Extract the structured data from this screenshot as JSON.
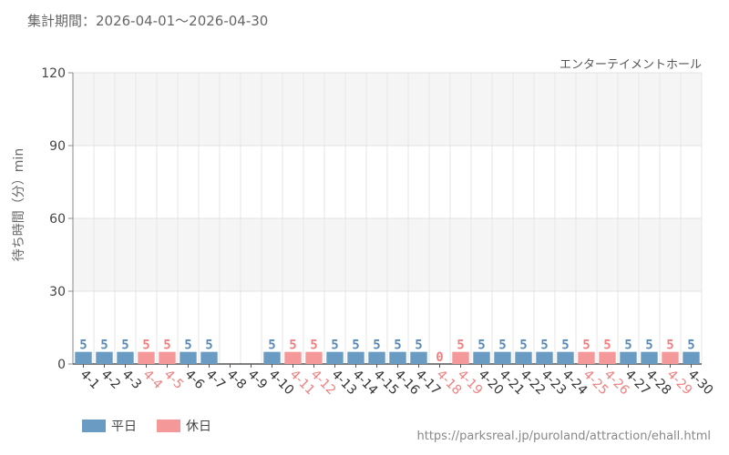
{
  "header": {
    "period": "集計期間：2026-04-01～2026-04-30"
  },
  "footer": {
    "source": "https://parksreal.jp/puroland/attraction/ehall.html"
  },
  "colors": {
    "weekday": "#6a9bc3",
    "holiday": "#f5989a",
    "weekday_text": "#5a8ab6",
    "holiday_text": "#f08080"
  },
  "chart_data": {
    "type": "bar",
    "title": "エンターテイメントホール",
    "xlabel": "",
    "ylabel": "待ち時間（分）min",
    "ylim": [
      0,
      120
    ],
    "yticks": [
      0,
      30,
      60,
      90,
      120
    ],
    "grid": true,
    "legend": [
      {
        "name": "平日",
        "key": "weekday"
      },
      {
        "name": "休日",
        "key": "holiday"
      }
    ],
    "legend_position": "bottom-left",
    "categories": [
      "4-1",
      "4-2",
      "4-3",
      "4-4",
      "4-5",
      "4-6",
      "4-7",
      "4-8",
      "4-9",
      "4-10",
      "4-11",
      "4-12",
      "4-13",
      "4-14",
      "4-15",
      "4-16",
      "4-17",
      "4-18",
      "4-19",
      "4-20",
      "4-21",
      "4-22",
      "4-23",
      "4-24",
      "4-25",
      "4-26",
      "4-27",
      "4-28",
      "4-29",
      "4-30"
    ],
    "values": [
      5,
      5,
      5,
      5,
      5,
      5,
      5,
      null,
      null,
      5,
      5,
      5,
      5,
      5,
      5,
      5,
      5,
      0,
      5,
      5,
      5,
      5,
      5,
      5,
      5,
      5,
      5,
      5,
      5,
      5
    ],
    "day_type": [
      "weekday",
      "weekday",
      "weekday",
      "holiday",
      "holiday",
      "weekday",
      "weekday",
      "weekday",
      "weekday",
      "weekday",
      "holiday",
      "holiday",
      "weekday",
      "weekday",
      "weekday",
      "weekday",
      "weekday",
      "holiday",
      "holiday",
      "weekday",
      "weekday",
      "weekday",
      "weekday",
      "weekday",
      "holiday",
      "holiday",
      "weekday",
      "weekday",
      "holiday",
      "weekday"
    ]
  }
}
